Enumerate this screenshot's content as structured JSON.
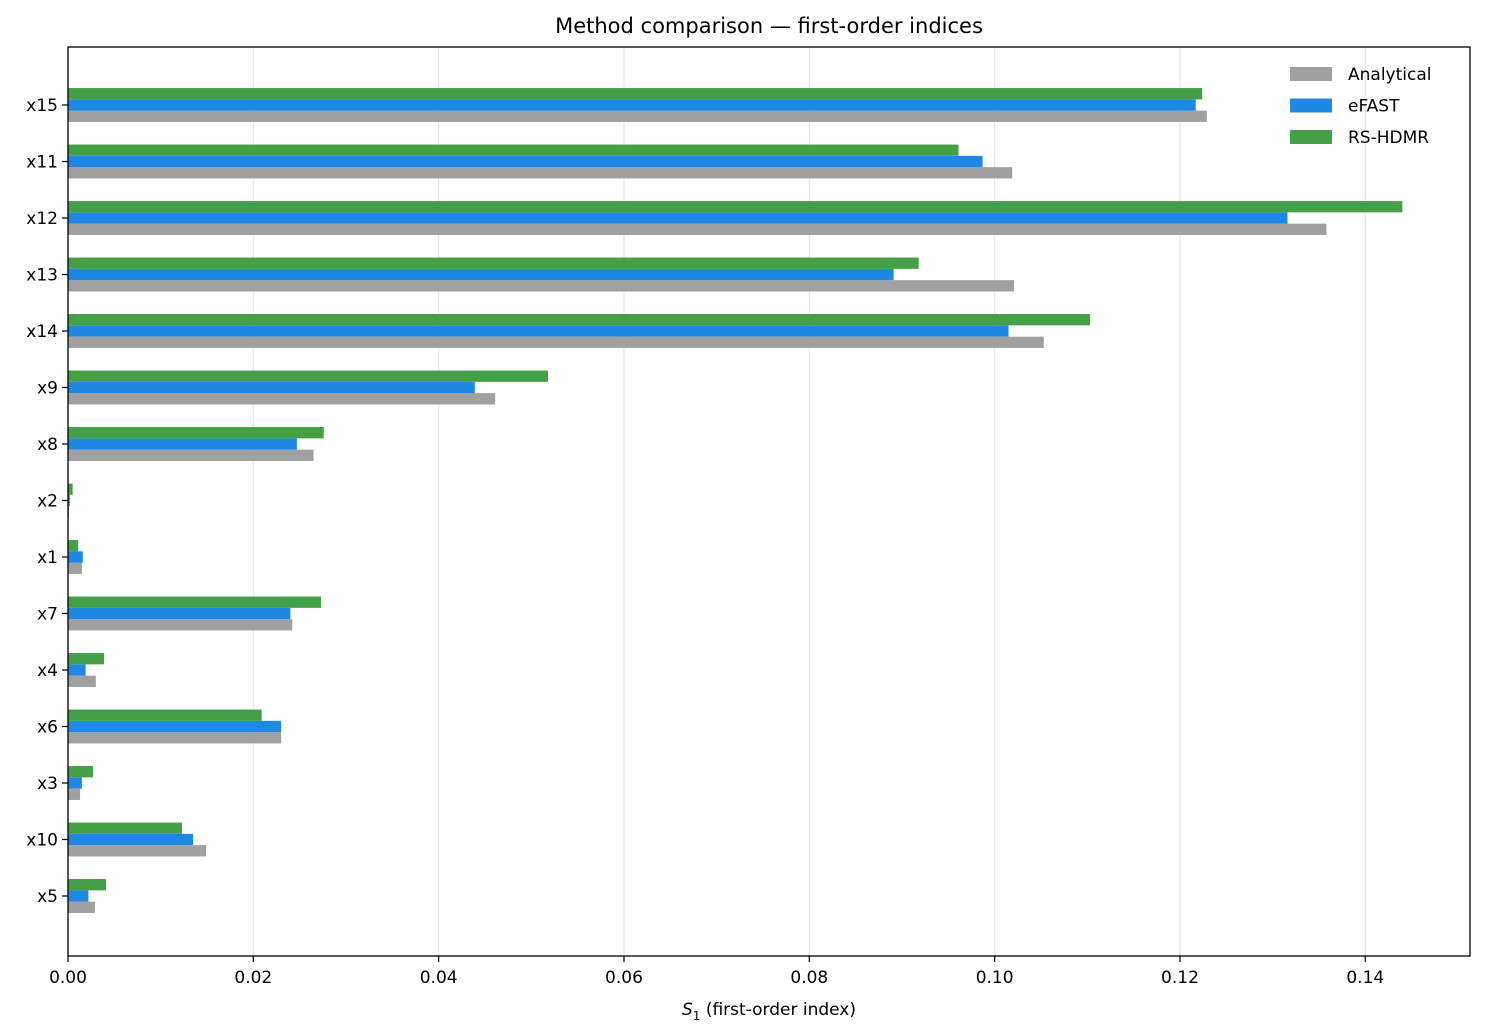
{
  "chart_data": {
    "type": "bar",
    "orientation": "horizontal",
    "title": "Method comparison — first-order indices",
    "xlabel_symbol": "S",
    "xlabel_subscript": "1",
    "xlabel_rest": " (first-order index)",
    "categories": [
      "x15",
      "x11",
      "x12",
      "x13",
      "x14",
      "x9",
      "x8",
      "x2",
      "x1",
      "x7",
      "x4",
      "x6",
      "x3",
      "x10",
      "x5"
    ],
    "series": [
      {
        "name": "Analytical",
        "color": "#a0a0a0",
        "values": [
          0.1229,
          0.1019,
          0.1358,
          0.1021,
          0.1053,
          0.0461,
          0.0265,
          0.0001,
          0.0015,
          0.0242,
          0.003,
          0.023,
          0.0013,
          0.0149,
          0.0029
        ]
      },
      {
        "name": "eFAST",
        "color": "#1f88e5",
        "values": [
          0.1217,
          0.0987,
          0.1316,
          0.0891,
          0.1015,
          0.0439,
          0.0247,
          0.0002,
          0.0016,
          0.024,
          0.0019,
          0.023,
          0.0015,
          0.0135,
          0.0022
        ]
      },
      {
        "name": "RS-HDMR",
        "color": "#43a047",
        "values": [
          0.1224,
          0.0961,
          0.144,
          0.0918,
          0.1103,
          0.0518,
          0.0276,
          0.0005,
          0.0011,
          0.0273,
          0.0039,
          0.0209,
          0.0027,
          0.0123,
          0.0041
        ]
      }
    ],
    "xticks": [
      "0.00",
      "0.02",
      "0.04",
      "0.06",
      "0.08",
      "0.10",
      "0.12",
      "0.14"
    ],
    "xlim": [
      0,
      0.1513
    ],
    "grid": "vertical",
    "legend_position": "top-right"
  }
}
